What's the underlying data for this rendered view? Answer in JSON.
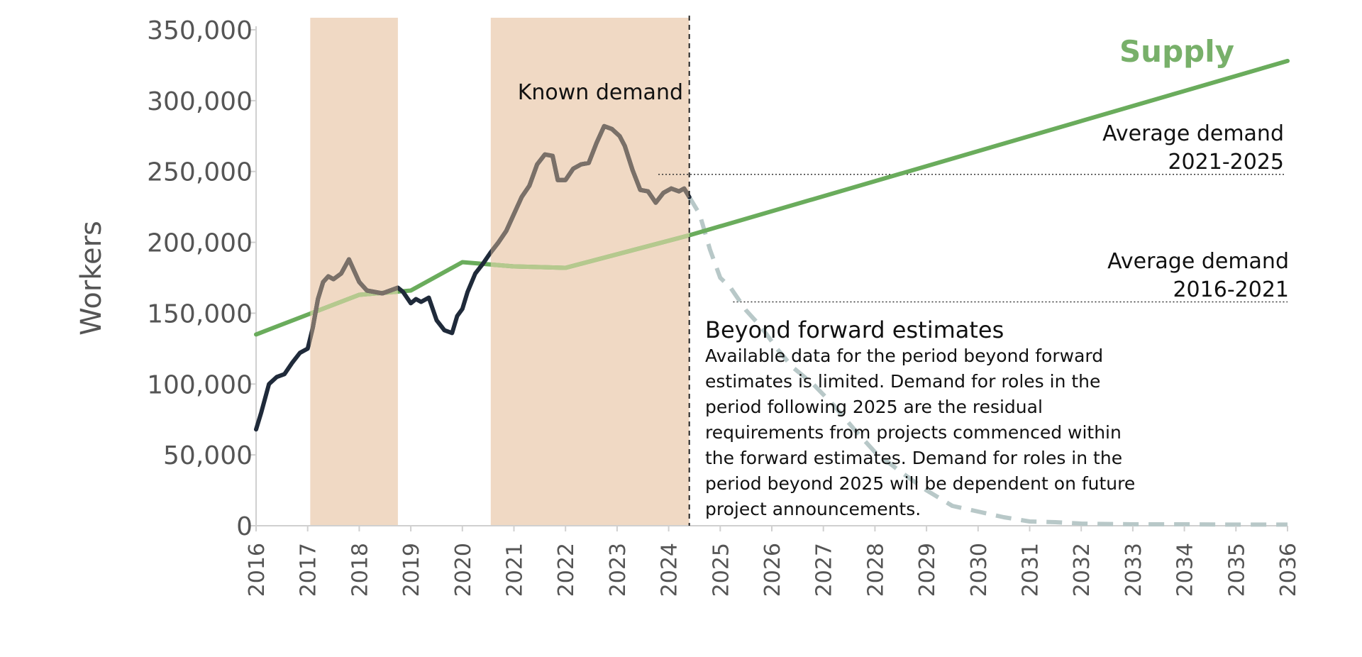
{
  "chart_data": {
    "type": "line",
    "ylabel": "Workers",
    "xlabel": "",
    "ylim": [
      0,
      350000
    ],
    "yticks": [
      "0",
      "50,000",
      "100,000",
      "150,000",
      "200,000",
      "250,000",
      "300,000",
      "350,000"
    ],
    "ytick_values": [
      0,
      50000,
      100000,
      150000,
      200000,
      250000,
      300000,
      350000
    ],
    "xlim": [
      2016,
      2036
    ],
    "xticks": [
      "2016",
      "2017",
      "2018",
      "2019",
      "2020",
      "2021",
      "2022",
      "2023",
      "2024",
      "2025",
      "2026",
      "2027",
      "2028",
      "2029",
      "2030",
      "2031",
      "2032",
      "2033",
      "2034",
      "2035",
      "2036"
    ],
    "xtick_values": [
      2016,
      2017,
      2018,
      2019,
      2020,
      2021,
      2022,
      2023,
      2024,
      2025,
      2026,
      2027,
      2028,
      2029,
      2030,
      2031,
      2032,
      2033,
      2034,
      2035,
      2036
    ],
    "shaded_periods": [
      {
        "start": 2017.05,
        "end": 2018.75
      },
      {
        "start": 2020.55,
        "end": 2024.4
      }
    ],
    "divider_x": 2024.4,
    "series": [
      {
        "name": "Demand (actual)",
        "style": "solid",
        "x": [
          2016.0,
          2016.1,
          2016.25,
          2016.4,
          2016.55,
          2016.7,
          2016.85,
          2017.0,
          2017.1,
          2017.2,
          2017.3,
          2017.4,
          2017.5,
          2017.65,
          2017.8,
          2017.9,
          2018.0,
          2018.15,
          2018.3,
          2018.45,
          2018.6,
          2018.75,
          2018.85,
          2019.0,
          2019.1,
          2019.2,
          2019.35,
          2019.5,
          2019.65,
          2019.8,
          2019.9,
          2020.0,
          2020.1,
          2020.25,
          2020.4,
          2020.55,
          2020.7,
          2020.85,
          2021.0,
          2021.15,
          2021.3,
          2021.45,
          2021.6,
          2021.75,
          2021.85,
          2022.0,
          2022.15,
          2022.3,
          2022.45,
          2022.6,
          2022.75,
          2022.9,
          2023.05,
          2023.15,
          2023.3,
          2023.45,
          2023.6,
          2023.75,
          2023.9,
          2024.05,
          2024.2,
          2024.3,
          2024.4
        ],
        "values": [
          68000,
          80000,
          100000,
          105000,
          107000,
          115000,
          122000,
          125000,
          140000,
          160000,
          172000,
          176000,
          174000,
          178000,
          188000,
          180000,
          172000,
          166000,
          165000,
          164000,
          166000,
          168000,
          165000,
          157000,
          160000,
          158000,
          161000,
          145000,
          138000,
          136000,
          148000,
          153000,
          165000,
          178000,
          185000,
          193000,
          200000,
          208000,
          220000,
          232000,
          240000,
          255000,
          262000,
          261000,
          244000,
          244000,
          252000,
          255000,
          256000,
          270000,
          282000,
          280000,
          275000,
          268000,
          251000,
          237000,
          236000,
          228000,
          235000,
          238000,
          236000,
          238000,
          232000
        ]
      },
      {
        "name": "Demand (beyond forward estimates)",
        "style": "dashed",
        "x": [
          2024.4,
          2024.6,
          2024.8,
          2025.0,
          2025.2,
          2025.5,
          2025.8,
          2026.1,
          2026.4,
          2026.8,
          2027.2,
          2027.6,
          2028.0,
          2028.5,
          2029.0,
          2029.5,
          2030.0,
          2030.5,
          2031.0,
          2031.5,
          2032.0,
          2033.0,
          2034.0,
          2035.0,
          2036.0
        ],
        "values": [
          232000,
          220000,
          195000,
          175000,
          168000,
          152000,
          140000,
          125000,
          112000,
          100000,
          85000,
          68000,
          52000,
          38000,
          25000,
          14000,
          10000,
          6000,
          3000,
          2500,
          1500,
          1000,
          1000,
          800,
          800
        ]
      },
      {
        "name": "Supply",
        "style": "solid",
        "x": [
          2016.0,
          2018.0,
          2019.0,
          2020.0,
          2021.0,
          2022.0,
          2024.4,
          2036.0
        ],
        "values": [
          135000,
          163000,
          166000,
          186000,
          183000,
          182000,
          205000,
          328000
        ]
      }
    ],
    "reference_lines": [
      {
        "label": "Average demand 2021-2025",
        "value": 248000
      },
      {
        "label": "Average demand 2016-2021",
        "value": 158000
      }
    ],
    "annotations": {
      "known_demand": "Known demand",
      "supply_label": "Supply",
      "avg_2021_line1": "Average demand",
      "avg_2021_line2": "2021-2025",
      "avg_2016_line1": "Average demand",
      "avg_2016_line2": "2016-2021",
      "beyond_title": "Beyond forward estimates",
      "beyond_body": [
        "Available data for the period beyond forward",
        "estimates is limited. Demand for roles in the",
        "period following 2025 are the residual",
        "requirements from projects commenced within",
        "the forward estimates. Demand for roles in the",
        "period beyond 2025 will be dependent on future",
        "project announcements."
      ]
    },
    "colors": {
      "shade": "#f0d9c4",
      "demand_actual": "#1f2a3a",
      "demand_shaded": "#7a7068",
      "demand_dashed": "#b8c8c8",
      "supply": "#6aac5c",
      "supply_shaded": "#b5c98e",
      "axis": "#d0d0d0"
    }
  }
}
